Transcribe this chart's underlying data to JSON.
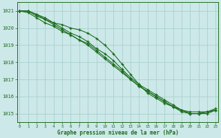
{
  "xlabel": "Graphe pression niveau de la mer (hPa)",
  "ylabel": "",
  "xlim": [
    -0.3,
    23.3
  ],
  "ylim": [
    1014.5,
    1021.5
  ],
  "yticks": [
    1015,
    1016,
    1017,
    1018,
    1019,
    1020,
    1021
  ],
  "xticks": [
    0,
    1,
    2,
    3,
    4,
    5,
    6,
    7,
    8,
    9,
    10,
    11,
    12,
    13,
    14,
    15,
    16,
    17,
    18,
    19,
    20,
    21,
    22,
    23
  ],
  "background_color": "#cce8e8",
  "grid_color": "#aacfcf",
  "line_color": "#1a6b1a",
  "series": [
    [
      1021.0,
      1021.0,
      1020.8,
      1020.5,
      1020.2,
      1019.9,
      1019.6,
      1019.3,
      1019.0,
      1018.6,
      1018.2,
      1017.8,
      1017.4,
      1017.0,
      1016.6,
      1016.3,
      1016.0,
      1015.7,
      1015.4,
      1015.2,
      1015.0,
      1015.0,
      1015.1,
      1015.2
    ],
    [
      1021.0,
      1021.0,
      1020.8,
      1020.6,
      1020.3,
      1020.0,
      1019.7,
      1019.5,
      1019.2,
      1018.8,
      1018.5,
      1018.1,
      1017.6,
      1017.1,
      1016.7,
      1016.4,
      1016.1,
      1015.8,
      1015.5,
      1015.2,
      1015.0,
      1015.0,
      1015.0,
      1015.2
    ],
    [
      1021.0,
      1020.9,
      1020.6,
      1020.3,
      1020.1,
      1019.8,
      1019.6,
      1019.3,
      1019.1,
      1018.7,
      1018.3,
      1017.9,
      1017.5,
      1017.0,
      1016.6,
      1016.3,
      1016.0,
      1015.7,
      1015.4,
      1015.1,
      1015.0,
      1015.0,
      1015.1,
      1015.2
    ],
    [
      1021.0,
      1021.0,
      1020.7,
      1020.5,
      1020.3,
      1020.2,
      1020.0,
      1019.9,
      1019.7,
      1019.4,
      1019.0,
      1018.5,
      1017.9,
      1017.3,
      1016.7,
      1016.2,
      1015.9,
      1015.6,
      1015.4,
      1015.2,
      1015.1,
      1015.1,
      1015.1,
      1015.3
    ]
  ]
}
